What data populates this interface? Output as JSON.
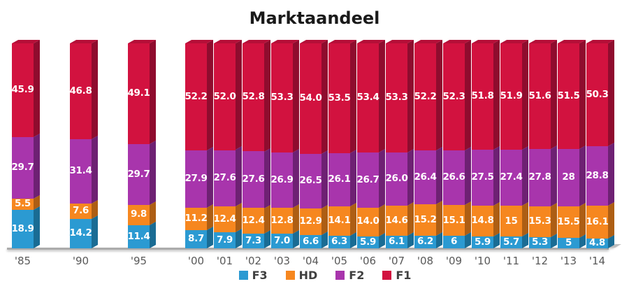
{
  "title": "Marktaandeel",
  "chart_data": {
    "type": "bar",
    "stacked": true,
    "percent_total": 100,
    "title": "Marktaandeel",
    "xlabel": "",
    "ylabel": "",
    "ylim": [
      0,
      100
    ],
    "grid": false,
    "categories": [
      "'85",
      "'90",
      "'95",
      "'00",
      "'01",
      "'02",
      "'03",
      "'04",
      "'05",
      "'06",
      "'07",
      "'08",
      "'09",
      "'10",
      "'11",
      "'12",
      "'13",
      "'14"
    ],
    "series": [
      {
        "name": "F3",
        "color": "#2B9AD2",
        "side_color": "#1A6C94",
        "top_color": "#2384B5",
        "values": [
          18.9,
          14.2,
          11.4,
          8.7,
          7.9,
          7.3,
          7.0,
          6.6,
          6.3,
          5.9,
          6.1,
          6.2,
          6,
          5.9,
          5.7,
          5.3,
          5,
          4.8
        ],
        "labels": [
          "18.9",
          "14.2",
          "11.4",
          "8.7",
          "7.9",
          "7.3",
          "7.0",
          "6.6",
          "6.3",
          "5.9",
          "6.1",
          "6.2",
          "6",
          "5.9",
          "5.7",
          "5.3",
          "5",
          "4.8"
        ]
      },
      {
        "name": "HD",
        "color": "#F6871F",
        "side_color": "#AD5E14",
        "top_color": "#D47318",
        "values": [
          5.5,
          7.6,
          9.8,
          11.2,
          12.4,
          12.4,
          12.8,
          12.9,
          14.1,
          14.0,
          14.6,
          15.2,
          15.1,
          14.8,
          15,
          15.3,
          15.5,
          16.1
        ],
        "labels": [
          "5.5",
          "7.6",
          "9.8",
          "11.2",
          "12.4",
          "12.4",
          "12.8",
          "12.9",
          "14.1",
          "14.0",
          "14.6",
          "15.2",
          "15.1",
          "14.8",
          "15",
          "15.3",
          "15.5",
          "16.1"
        ]
      },
      {
        "name": "F2",
        "color": "#A835AC",
        "side_color": "#6E2173",
        "top_color": "#8E2C92",
        "values": [
          29.7,
          31.4,
          29.7,
          27.9,
          27.6,
          27.6,
          26.9,
          26.5,
          26.1,
          26.7,
          26.0,
          26.4,
          26.6,
          27.5,
          27.4,
          27.8,
          28,
          28.8
        ],
        "labels": [
          "29.7",
          "31.4",
          "29.7",
          "27.9",
          "27.6",
          "27.6",
          "26.9",
          "26.5",
          "26.1",
          "26.7",
          "26.0",
          "26.4",
          "26.6",
          "27.5",
          "27.4",
          "27.8",
          "28",
          "28.8"
        ]
      },
      {
        "name": "F1",
        "color": "#D2123F",
        "side_color": "#8F0C2E",
        "top_color": "#B50F38",
        "values": [
          45.9,
          46.8,
          49.1,
          52.2,
          52.0,
          52.8,
          53.3,
          54.0,
          53.5,
          53.4,
          53.3,
          52.2,
          52.3,
          51.8,
          51.9,
          51.6,
          51.5,
          50.3
        ],
        "labels": [
          "45.9",
          "46.8",
          "49.1",
          "52.2",
          "52.0",
          "52.8",
          "53.3",
          "54.0",
          "53.5",
          "53.4",
          "53.3",
          "52.2",
          "52.3",
          "51.8",
          "51.9",
          "51.6",
          "51.5",
          "50.3"
        ]
      }
    ],
    "legend": {
      "position": "bottom",
      "items": [
        "F3",
        "HD",
        "F2",
        "F1"
      ]
    },
    "axis": {
      "x_label_color": "#595959",
      "baseline_color": "#ABABAB"
    },
    "value_label_color": "#FFFFFF"
  }
}
